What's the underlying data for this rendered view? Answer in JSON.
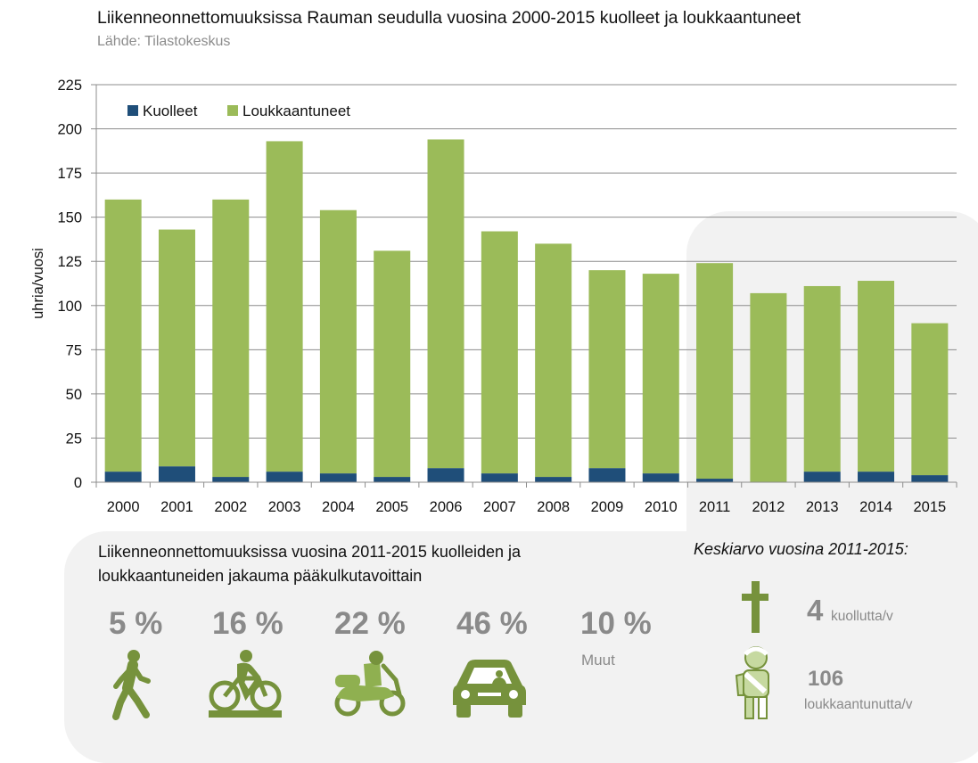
{
  "title": "Liikenneonnettomuuksissa Rauman seudulla vuosina 2000-2015 kuolleet ja loukkaantuneet",
  "source": "Lähde: Tilastokeskus",
  "chart_data": {
    "type": "bar",
    "stacked": true,
    "categories": [
      "2000",
      "2001",
      "2002",
      "2003",
      "2004",
      "2005",
      "2006",
      "2007",
      "2008",
      "2009",
      "2010",
      "2011",
      "2012",
      "2013",
      "2014",
      "2015"
    ],
    "series": [
      {
        "name": "Kuolleet",
        "color": "#1f4e79",
        "values": [
          6,
          9,
          3,
          6,
          5,
          3,
          8,
          5,
          3,
          8,
          5,
          2,
          0,
          6,
          6,
          4
        ]
      },
      {
        "name": "Loukkaantuneet",
        "color": "#9bbb59",
        "values": [
          154,
          134,
          157,
          187,
          149,
          128,
          186,
          137,
          132,
          112,
          113,
          122,
          107,
          105,
          108,
          86
        ]
      }
    ],
    "ylabel": "uhria/vuosi",
    "xlabel": "",
    "ylim": [
      0,
      225
    ],
    "yticks": [
      0,
      25,
      50,
      75,
      100,
      125,
      150,
      175,
      200,
      225
    ],
    "grid": true,
    "legend": "top-left",
    "highlight_range": [
      "2011",
      "2015"
    ]
  },
  "distribution": {
    "heading": "Liikenneonnettomuuksissa vuosina 2011-2015 kuolleiden ja loukkaantuneiden jakauma pääkulkutavoittain",
    "modes": [
      {
        "label": "5 %",
        "icon": "pedestrian-icon"
      },
      {
        "label": "16 %",
        "icon": "cyclist-icon"
      },
      {
        "label": "22 %",
        "icon": "moped-icon"
      },
      {
        "label": "46 %",
        "icon": "car-icon"
      },
      {
        "label": "10 %",
        "icon": "",
        "caption": "Muut"
      }
    ]
  },
  "average": {
    "title": "Keskiarvo vuosina 2011-2015:",
    "killed_value": "4",
    "killed_unit": "kuollutta/v",
    "killed_icon": "cross-icon",
    "injured_value": "106",
    "injured_unit": "loukkaantunutta/v",
    "injured_icon": "injured-person-icon"
  }
}
